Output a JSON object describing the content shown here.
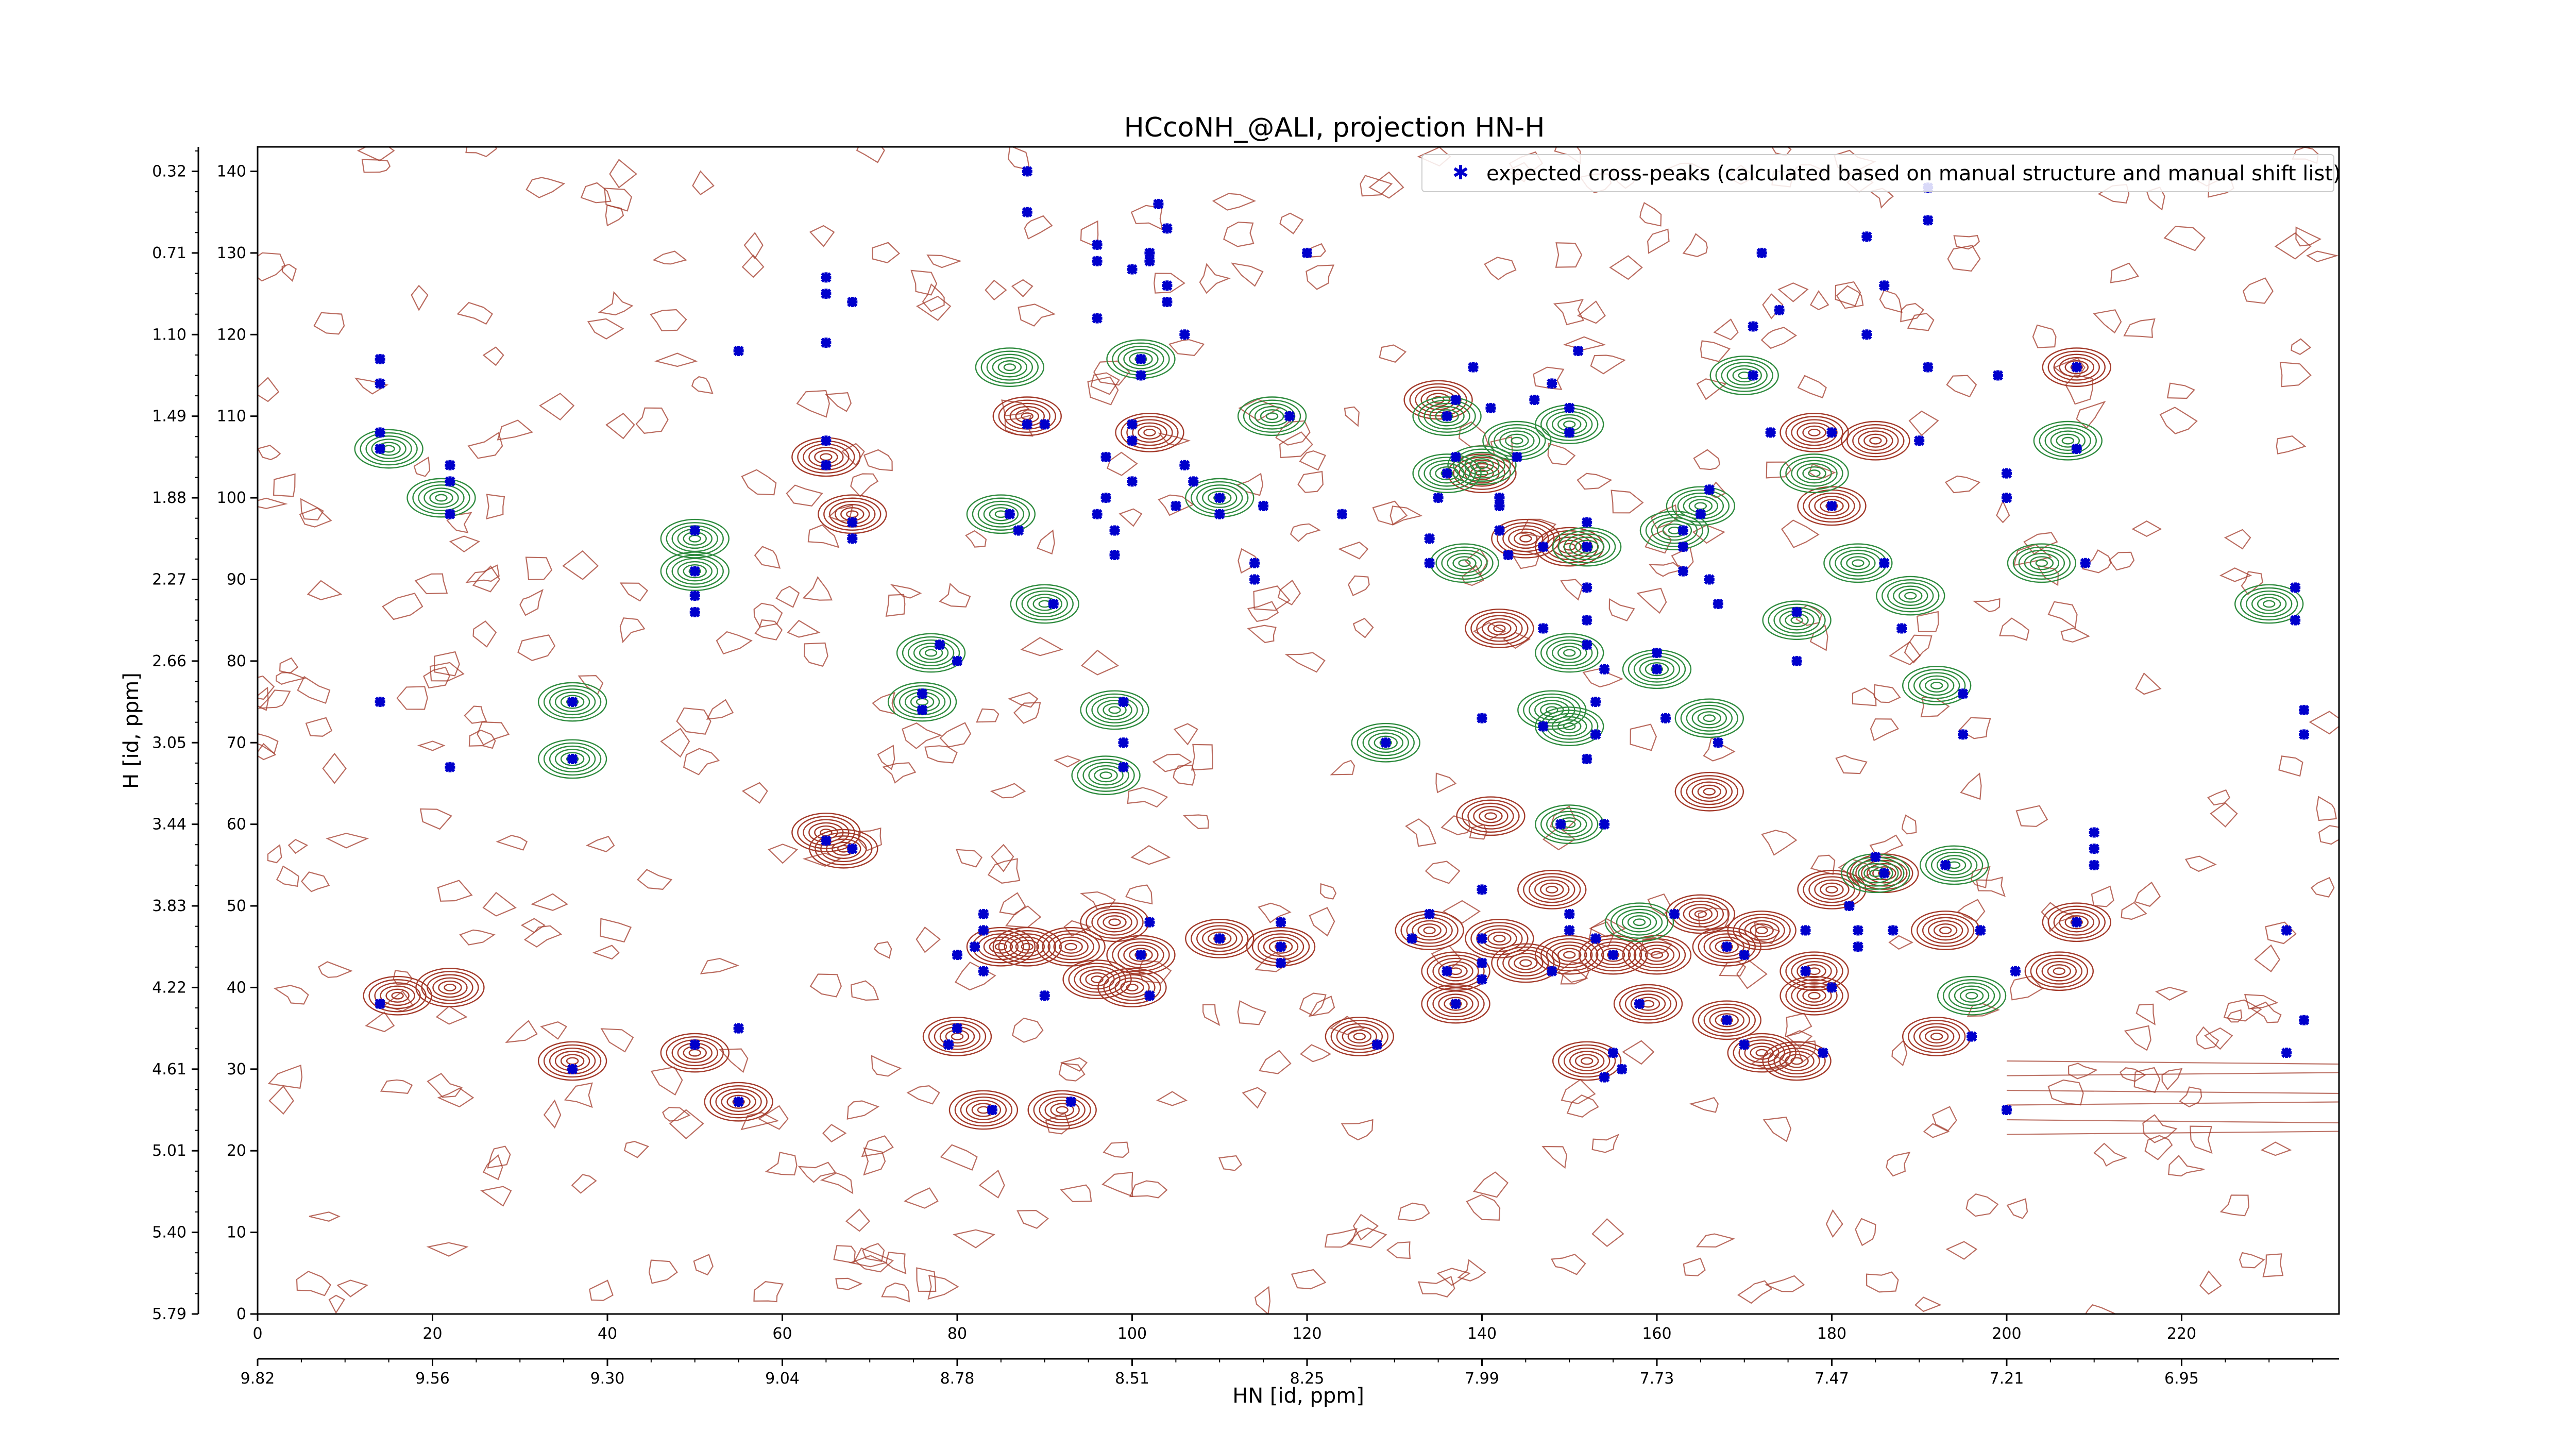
{
  "chart_data": {
    "type": "contour",
    "title": "HCcoNH_@ALI, projection HN-H",
    "xlabel_top": "",
    "xlabel_bottom": "HN [id, ppm]",
    "ylabel": "H [id, ppm]",
    "x_index_range": [
      0,
      238
    ],
    "y_index_range": [
      0,
      143
    ],
    "x_index_ticks": [
      "0",
      "20",
      "40",
      "60",
      "80",
      "100",
      "120",
      "140",
      "160",
      "180",
      "200",
      "220"
    ],
    "x_ppm_ticks": [
      "9.82",
      "9.56",
      "9.30",
      "9.04",
      "8.78",
      "8.51",
      "8.25",
      "7.99",
      "7.73",
      "7.47",
      "7.21",
      "6.95"
    ],
    "y_index_ticks": [
      "0",
      "10",
      "20",
      "30",
      "40",
      "50",
      "60",
      "70",
      "80",
      "90",
      "100",
      "110",
      "120",
      "130",
      "140"
    ],
    "y_ppm_ticks": [
      "5.79",
      "5.40",
      "5.01",
      "4.61",
      "4.22",
      "3.83",
      "3.44",
      "3.05",
      "2.66",
      "2.27",
      "1.88",
      "1.49",
      "1.10",
      "0.71",
      "0.32"
    ],
    "legend": {
      "placement": "top-right",
      "label": "expected cross-peaks (calculated based on manual structure and manual shift list)"
    },
    "colors": {
      "positive_contour": "#a33a2a",
      "negative_contour": "#2e8b3e",
      "expected_peak": "#0000cc"
    },
    "red_peaks": [
      [
        16,
        39
      ],
      [
        22,
        40
      ],
      [
        36,
        31
      ],
      [
        50,
        32
      ],
      [
        55,
        26
      ],
      [
        65,
        59
      ],
      [
        67,
        57
      ],
      [
        80,
        34
      ],
      [
        83,
        25
      ],
      [
        92,
        25
      ],
      [
        85,
        45
      ],
      [
        88,
        45
      ],
      [
        93,
        45
      ],
      [
        98,
        48
      ],
      [
        101,
        44
      ],
      [
        100,
        40
      ],
      [
        96,
        41
      ],
      [
        110,
        46
      ],
      [
        117,
        45
      ],
      [
        126,
        34
      ],
      [
        137,
        38
      ],
      [
        137,
        42
      ],
      [
        134,
        47
      ],
      [
        142,
        46
      ],
      [
        135,
        112
      ],
      [
        140,
        103
      ],
      [
        145,
        95
      ],
      [
        150,
        94
      ],
      [
        141,
        61
      ],
      [
        145,
        43
      ],
      [
        150,
        44
      ],
      [
        155,
        44
      ],
      [
        152,
        31
      ],
      [
        159,
        38
      ],
      [
        168,
        36
      ],
      [
        172,
        32
      ],
      [
        176,
        31
      ],
      [
        168,
        45
      ],
      [
        172,
        47
      ],
      [
        178,
        42
      ],
      [
        178,
        39
      ],
      [
        180,
        52
      ],
      [
        186,
        54
      ],
      [
        193,
        47
      ],
      [
        192,
        34
      ],
      [
        208,
        48
      ],
      [
        206,
        42
      ],
      [
        208,
        116
      ],
      [
        178,
        108
      ],
      [
        180,
        99
      ],
      [
        185,
        107
      ],
      [
        166,
        64
      ],
      [
        68,
        98
      ],
      [
        65,
        105
      ],
      [
        88,
        110
      ],
      [
        102,
        108
      ],
      [
        142,
        84
      ],
      [
        160,
        44
      ],
      [
        165,
        49
      ],
      [
        148,
        52
      ]
    ],
    "green_peaks": [
      [
        15,
        106
      ],
      [
        21,
        100
      ],
      [
        36,
        75
      ],
      [
        36,
        68
      ],
      [
        50,
        95
      ],
      [
        50,
        91
      ],
      [
        77,
        81
      ],
      [
        76,
        75
      ],
      [
        86,
        116
      ],
      [
        85,
        98
      ],
      [
        98,
        74
      ],
      [
        97,
        66
      ],
      [
        101,
        117
      ],
      [
        110,
        100
      ],
      [
        116,
        110
      ],
      [
        136,
        103
      ],
      [
        136,
        110
      ],
      [
        129,
        70
      ],
      [
        148,
        74
      ],
      [
        150,
        72
      ],
      [
        150,
        81
      ],
      [
        150,
        60
      ],
      [
        152,
        94
      ],
      [
        150,
        109
      ],
      [
        158,
        48
      ],
      [
        162,
        96
      ],
      [
        165,
        99
      ],
      [
        166,
        73
      ],
      [
        170,
        115
      ],
      [
        176,
        85
      ],
      [
        178,
        103
      ],
      [
        183,
        92
      ],
      [
        185,
        54
      ],
      [
        189,
        88
      ],
      [
        192,
        77
      ],
      [
        196,
        39
      ],
      [
        194,
        55
      ],
      [
        207,
        107
      ],
      [
        204,
        92
      ],
      [
        230,
        87
      ],
      [
        140,
        104
      ],
      [
        144,
        107
      ],
      [
        160,
        79
      ],
      [
        138,
        92
      ],
      [
        90,
        87
      ]
    ],
    "expected_peaks": [
      [
        14,
        117
      ],
      [
        14,
        114
      ],
      [
        14,
        108
      ],
      [
        14,
        106
      ],
      [
        14,
        75
      ],
      [
        14,
        38
      ],
      [
        22,
        104
      ],
      [
        22,
        102
      ],
      [
        22,
        98
      ],
      [
        22,
        67
      ],
      [
        36,
        75
      ],
      [
        36,
        68
      ],
      [
        36,
        30
      ],
      [
        50,
        96
      ],
      [
        50,
        91
      ],
      [
        50,
        88
      ],
      [
        50,
        86
      ],
      [
        50,
        33
      ],
      [
        55,
        35
      ],
      [
        55,
        26
      ],
      [
        55,
        118
      ],
      [
        65,
        119
      ],
      [
        65,
        127
      ],
      [
        65,
        125
      ],
      [
        65,
        107
      ],
      [
        65,
        104
      ],
      [
        65,
        58
      ],
      [
        68,
        57
      ],
      [
        68,
        97
      ],
      [
        68,
        95
      ],
      [
        68,
        124
      ],
      [
        76,
        76
      ],
      [
        76,
        74
      ],
      [
        78,
        82
      ],
      [
        80,
        80
      ],
      [
        79,
        33
      ],
      [
        80,
        35
      ],
      [
        80,
        44
      ],
      [
        83,
        49
      ],
      [
        83,
        47
      ],
      [
        82,
        45
      ],
      [
        83,
        42
      ],
      [
        84,
        25
      ],
      [
        86,
        98
      ],
      [
        87,
        96
      ],
      [
        88,
        140
      ],
      [
        88,
        135
      ],
      [
        88,
        109
      ],
      [
        90,
        109
      ],
      [
        90,
        39
      ],
      [
        91,
        87
      ],
      [
        93,
        26
      ],
      [
        96,
        145
      ],
      [
        96,
        131
      ],
      [
        96,
        129
      ],
      [
        96,
        122
      ],
      [
        96,
        98
      ],
      [
        97,
        100
      ],
      [
        97,
        105
      ],
      [
        98,
        96
      ],
      [
        98,
        93
      ],
      [
        99,
        75
      ],
      [
        99,
        70
      ],
      [
        99,
        67
      ],
      [
        100,
        102
      ],
      [
        100,
        107
      ],
      [
        100,
        128
      ],
      [
        100,
        109
      ],
      [
        101,
        115
      ],
      [
        101,
        117
      ],
      [
        102,
        130
      ],
      [
        102,
        129
      ],
      [
        103,
        136
      ],
      [
        104,
        133
      ],
      [
        104,
        126
      ],
      [
        104,
        124
      ],
      [
        105,
        99
      ],
      [
        106,
        120
      ],
      [
        106,
        104
      ],
      [
        107,
        102
      ],
      [
        102,
        48
      ],
      [
        101,
        44
      ],
      [
        102,
        39
      ],
      [
        110,
        46
      ],
      [
        110,
        100
      ],
      [
        110,
        98
      ],
      [
        114,
        92
      ],
      [
        114,
        90
      ],
      [
        115,
        99
      ],
      [
        117,
        48
      ],
      [
        117,
        45
      ],
      [
        117,
        43
      ],
      [
        118,
        110
      ],
      [
        120,
        130
      ],
      [
        124,
        98
      ],
      [
        128,
        33
      ],
      [
        129,
        70
      ],
      [
        132,
        46
      ],
      [
        134,
        49
      ],
      [
        134,
        95
      ],
      [
        134,
        92
      ],
      [
        135,
        100
      ],
      [
        136,
        103
      ],
      [
        136,
        110
      ],
      [
        137,
        105
      ],
      [
        137,
        112
      ],
      [
        136,
        42
      ],
      [
        137,
        38
      ],
      [
        139,
        116
      ],
      [
        140,
        73
      ],
      [
        140,
        52
      ],
      [
        140,
        46
      ],
      [
        140,
        43
      ],
      [
        140,
        41
      ],
      [
        141,
        111
      ],
      [
        142,
        100
      ],
      [
        142,
        99
      ],
      [
        142,
        96
      ],
      [
        143,
        93
      ],
      [
        144,
        105
      ],
      [
        146,
        112
      ],
      [
        147,
        94
      ],
      [
        147,
        84
      ],
      [
        147,
        72
      ],
      [
        148,
        114
      ],
      [
        148,
        42
      ],
      [
        149,
        60
      ],
      [
        150,
        47
      ],
      [
        150,
        49
      ],
      [
        150,
        111
      ],
      [
        150,
        108
      ],
      [
        151,
        118
      ],
      [
        152,
        97
      ],
      [
        152,
        94
      ],
      [
        152,
        89
      ],
      [
        152,
        85
      ],
      [
        152,
        82
      ],
      [
        152,
        68
      ],
      [
        153,
        71
      ],
      [
        153,
        75
      ],
      [
        154,
        79
      ],
      [
        154,
        60
      ],
      [
        153,
        46
      ],
      [
        155,
        44
      ],
      [
        154,
        29
      ],
      [
        155,
        32
      ],
      [
        156,
        30
      ],
      [
        158,
        38
      ],
      [
        160,
        81
      ],
      [
        160,
        79
      ],
      [
        161,
        73
      ],
      [
        162,
        49
      ],
      [
        163,
        96
      ],
      [
        163,
        94
      ],
      [
        163,
        91
      ],
      [
        165,
        98
      ],
      [
        166,
        101
      ],
      [
        166,
        90
      ],
      [
        167,
        87
      ],
      [
        167,
        70
      ],
      [
        168,
        45
      ],
      [
        168,
        36
      ],
      [
        170,
        33
      ],
      [
        170,
        44
      ],
      [
        171,
        121
      ],
      [
        171,
        115
      ],
      [
        172,
        130
      ],
      [
        173,
        108
      ],
      [
        174,
        123
      ],
      [
        176,
        86
      ],
      [
        176,
        80
      ],
      [
        177,
        47
      ],
      [
        177,
        42
      ],
      [
        179,
        32
      ],
      [
        180,
        108
      ],
      [
        180,
        99
      ],
      [
        180,
        40
      ],
      [
        182,
        50
      ],
      [
        183,
        47
      ],
      [
        183,
        45
      ],
      [
        184,
        120
      ],
      [
        184,
        132
      ],
      [
        185,
        56
      ],
      [
        186,
        54
      ],
      [
        186,
        126
      ],
      [
        186,
        92
      ],
      [
        187,
        47
      ],
      [
        188,
        84
      ],
      [
        190,
        107
      ],
      [
        191,
        138
      ],
      [
        191,
        134
      ],
      [
        191,
        116
      ],
      [
        193,
        55
      ],
      [
        195,
        76
      ],
      [
        195,
        71
      ],
      [
        196,
        34
      ],
      [
        197,
        47
      ],
      [
        199,
        115
      ],
      [
        200,
        103
      ],
      [
        200,
        100
      ],
      [
        200,
        25
      ],
      [
        201,
        42
      ],
      [
        208,
        48
      ],
      [
        208,
        116
      ],
      [
        208,
        106
      ],
      [
        209,
        92
      ],
      [
        210,
        55
      ],
      [
        210,
        57
      ],
      [
        210,
        59
      ],
      [
        232,
        47
      ],
      [
        232,
        32
      ],
      [
        233,
        89
      ],
      [
        233,
        85
      ],
      [
        234,
        74
      ],
      [
        234,
        71
      ],
      [
        234,
        36
      ]
    ]
  }
}
